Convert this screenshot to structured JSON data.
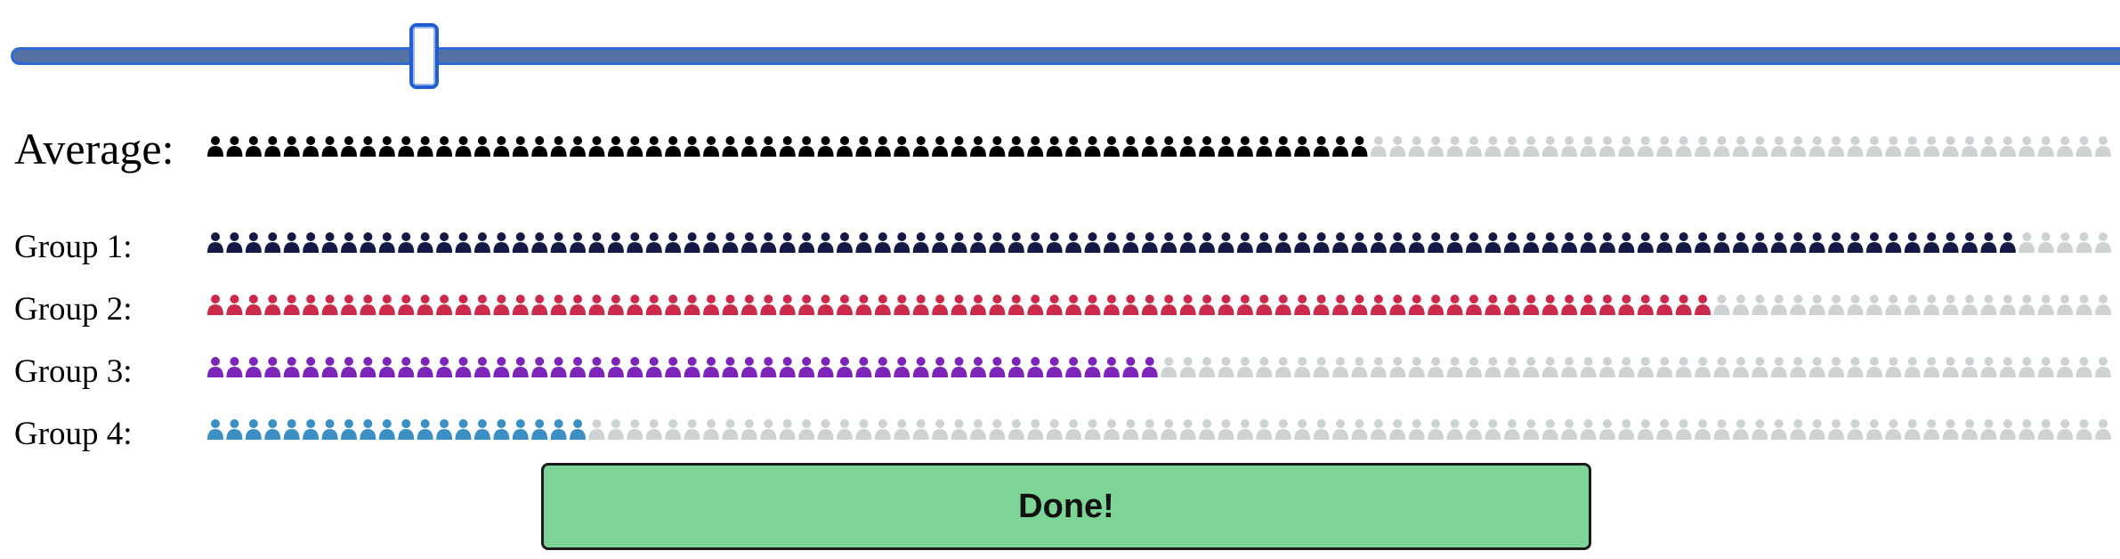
{
  "slider": {
    "value_fraction": 0.195
  },
  "average": {
    "label": "Average:",
    "filled": 61,
    "total": 100,
    "color": "#000000"
  },
  "groups": [
    {
      "label": "Group 1:",
      "filled": 95,
      "total": 100,
      "color": "#141a45"
    },
    {
      "label": "Group 2:",
      "filled": 79,
      "total": 100,
      "color": "#cc2a4a"
    },
    {
      "label": "Group 3:",
      "filled": 50,
      "total": 100,
      "color": "#7c25b8"
    },
    {
      "label": "Group 4:",
      "filled": 20,
      "total": 100,
      "color": "#3b8fc4"
    }
  ],
  "empty_color": "#cdd2d2",
  "icons": {
    "person": "person-icon"
  },
  "done_button": {
    "label": "Done!"
  }
}
